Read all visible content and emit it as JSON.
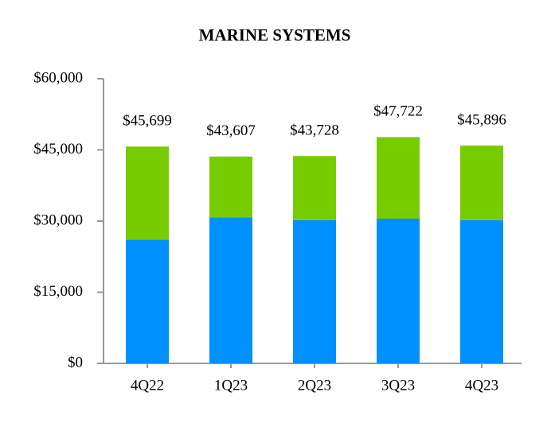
{
  "chart_data": {
    "type": "stacked_bar",
    "title": "MARINE SYSTEMS",
    "categories": [
      "4Q22",
      "1Q23",
      "2Q23",
      "3Q23",
      "4Q23"
    ],
    "series": [
      {
        "color": "#0090ff",
        "values": [
          26100,
          30800,
          30200,
          30500,
          30200
        ]
      },
      {
        "color": "#77cc00",
        "values": [
          19600,
          12800,
          13500,
          17200,
          15700
        ]
      }
    ],
    "totals": {
      "values": [
        45699,
        43607,
        43728,
        47722,
        45896
      ],
      "value_labels": [
        "$45,699",
        "$43,607",
        "$43,728",
        "$47,722",
        "$45,896"
      ]
    },
    "ylim": [
      0,
      60000
    ],
    "yticks": [
      {
        "value": 0,
        "label": "$0"
      },
      {
        "value": 15000,
        "label": "$15,000"
      },
      {
        "value": 30000,
        "label": "$30,000"
      },
      {
        "value": 45000,
        "label": "$45,000"
      },
      {
        "value": 60000,
        "label": "$60,000"
      }
    ]
  }
}
